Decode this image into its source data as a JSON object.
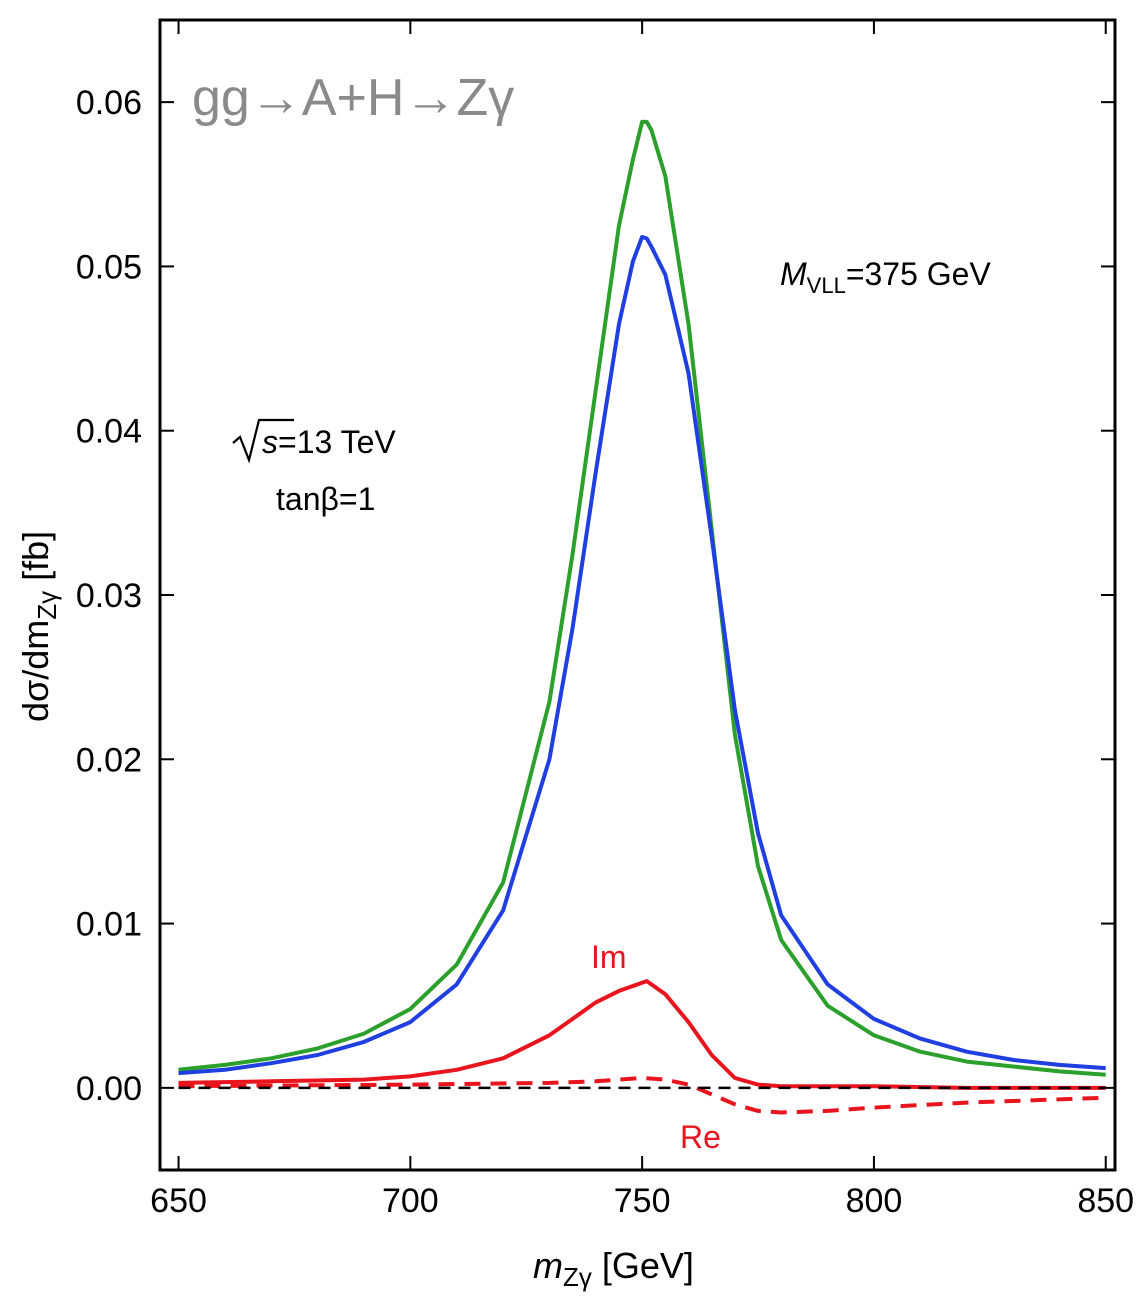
{
  "chart_data": {
    "type": "line",
    "title": "gg→A+H→Zγ",
    "xlabel": {
      "main": "m",
      "sub": "Zγ",
      "unit": " [GeV]"
    },
    "ylabel": {
      "main": "dσ/dm",
      "sub": "Zγ",
      "unit": " [fb]"
    },
    "xlim": [
      646,
      852
    ],
    "ylim": [
      -0.005,
      0.065
    ],
    "xticks": [
      650,
      700,
      750,
      800,
      850
    ],
    "yticks": [
      0.0,
      0.01,
      0.02,
      0.03,
      0.04,
      0.05,
      0.06
    ],
    "xtick_labels": [
      "650",
      "700",
      "750",
      "800",
      "850"
    ],
    "ytick_labels": [
      "0.00",
      "0.01",
      "0.02",
      "0.03",
      "0.04",
      "0.05",
      "0.06"
    ],
    "annotations": {
      "mvll_main": "M",
      "mvll_sub": "VLL",
      "mvll_value": "=375 GeV",
      "sqrt_s_var": "s",
      "sqrt_s_value": "=13 TeV",
      "tanbeta": "tanβ=1",
      "label_im": "Im",
      "label_re": "Re"
    },
    "series": [
      {
        "color": "#2ca02c",
        "style": "solid",
        "x": [
          650,
          660,
          670,
          680,
          690,
          700,
          710,
          720,
          730,
          735,
          740,
          745,
          748,
          750,
          751,
          752,
          755,
          760,
          765,
          770,
          775,
          780,
          790,
          800,
          810,
          820,
          830,
          840,
          850
        ],
        "y": [
          0.0011,
          0.0014,
          0.0018,
          0.0024,
          0.0033,
          0.0048,
          0.0075,
          0.0125,
          0.0235,
          0.0325,
          0.0425,
          0.0525,
          0.0565,
          0.0588,
          0.0588,
          0.0583,
          0.0555,
          0.0465,
          0.034,
          0.0215,
          0.0135,
          0.009,
          0.005,
          0.0032,
          0.0022,
          0.0016,
          0.0013,
          0.001,
          0.0008
        ]
      },
      {
        "color": "#1f3fe0",
        "style": "solid",
        "x": [
          650,
          660,
          670,
          680,
          690,
          700,
          710,
          720,
          730,
          735,
          740,
          745,
          748,
          750,
          751,
          752,
          755,
          760,
          765,
          770,
          775,
          780,
          790,
          800,
          810,
          820,
          830,
          840,
          850
        ],
        "y": [
          0.0009,
          0.0011,
          0.0015,
          0.002,
          0.0028,
          0.004,
          0.0063,
          0.0108,
          0.02,
          0.028,
          0.0375,
          0.0465,
          0.0503,
          0.0518,
          0.0517,
          0.0512,
          0.0495,
          0.0435,
          0.0335,
          0.023,
          0.0155,
          0.0105,
          0.0063,
          0.0042,
          0.003,
          0.0022,
          0.0017,
          0.0014,
          0.0012
        ]
      },
      {
        "name": "Im",
        "color": "#e8141e",
        "style": "solid",
        "x": [
          650,
          670,
          690,
          700,
          710,
          720,
          730,
          735,
          740,
          745,
          748,
          750,
          751,
          752,
          755,
          760,
          765,
          770,
          775,
          780,
          800,
          820,
          850
        ],
        "y": [
          0.0003,
          0.0004,
          0.0005,
          0.0007,
          0.0011,
          0.0018,
          0.0032,
          0.0042,
          0.0052,
          0.0059,
          0.0062,
          0.0064,
          0.0065,
          0.0063,
          0.0057,
          0.004,
          0.002,
          0.0006,
          0.0002,
          0.0001,
          0.0001,
          0.0,
          0.0
        ]
      },
      {
        "name": "Re",
        "color": "#e8141e",
        "style": "dashed",
        "x": [
          650,
          700,
          730,
          740,
          745,
          750,
          755,
          760,
          765,
          770,
          775,
          780,
          790,
          800,
          820,
          850
        ],
        "y": [
          0.0001,
          0.0002,
          0.0003,
          0.0004,
          0.0005,
          0.0006,
          0.0005,
          0.0002,
          -0.0004,
          -0.001,
          -0.0014,
          -0.0015,
          -0.0014,
          -0.0012,
          -0.0009,
          -0.0006
        ]
      },
      {
        "color": "#000000",
        "style": "dashed",
        "x": [
          650,
          850
        ],
        "y": [
          0.0,
          0.0
        ]
      }
    ]
  }
}
